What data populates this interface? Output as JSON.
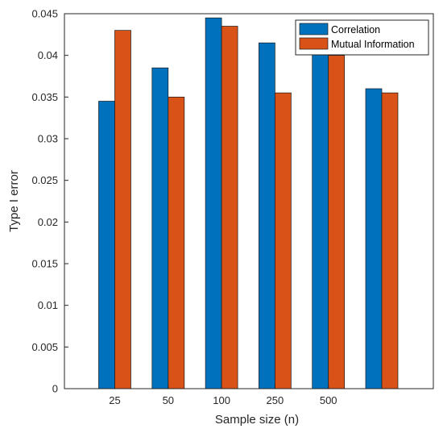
{
  "chart_data": {
    "type": "bar",
    "categories": [
      "25",
      "50",
      "100",
      "250",
      "500",
      ""
    ],
    "series": [
      {
        "name": "Correlation",
        "color": "#0072BD",
        "values": [
          0.0345,
          0.0385,
          0.0445,
          0.0415,
          0.0405,
          0.036
        ]
      },
      {
        "name": "Mutual Information",
        "color": "#D95319",
        "values": [
          0.043,
          0.035,
          0.0435,
          0.0355,
          0.04,
          0.0355
        ]
      }
    ],
    "xlabel": "Sample size (n)",
    "ylabel": "Type I error",
    "ylim": [
      0,
      0.045
    ],
    "yticks": [
      "0",
      "0.005",
      "0.01",
      "0.015",
      "0.02",
      "0.025",
      "0.03",
      "0.035",
      "0.04",
      "0.045"
    ],
    "grid": false,
    "legend_position": "top-right"
  }
}
